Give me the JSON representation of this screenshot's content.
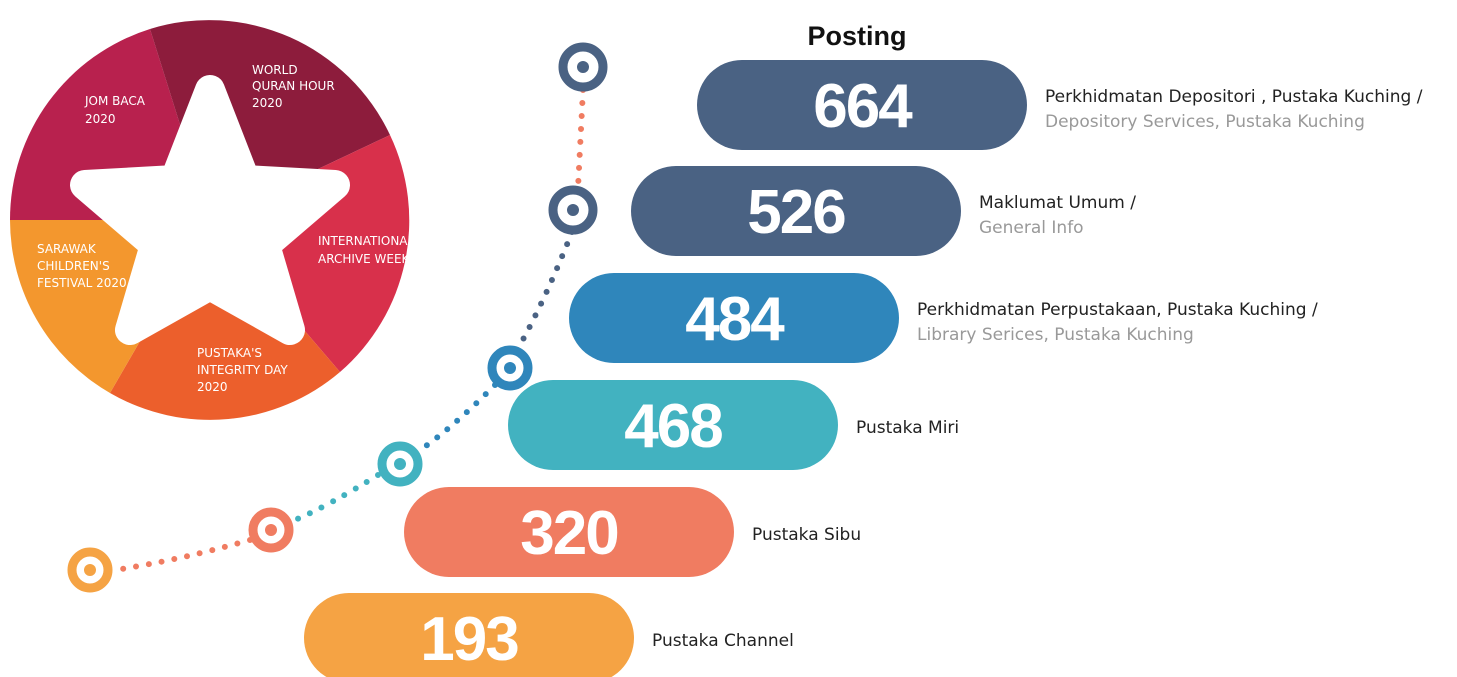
{
  "title": "Posting",
  "items": [
    {
      "value": "664",
      "label": "Perkhidmatan Depositori , Pustaka Kuching /",
      "sublabel": "Depository Services, Pustaka Kuching"
    },
    {
      "value": "526",
      "label": "Maklumat Umum /",
      "sublabel": "General Info"
    },
    {
      "value": "484",
      "label": "Perkhidmatan Perpustakaan, Pustaka Kuching /",
      "sublabel": "Library Serices, Pustaka Kuching"
    },
    {
      "value": "468",
      "label": "Pustaka Miri"
    },
    {
      "value": "320",
      "label": "Pustaka Sibu"
    },
    {
      "value": "193",
      "label": "Pustaka Channel"
    }
  ],
  "segments": [
    {
      "lines": [
        "JOM BACA",
        "2020"
      ]
    },
    {
      "lines": [
        "WORLD",
        "QURAN HOUR",
        "2020"
      ]
    },
    {
      "lines": [
        "INTERNATIONAL",
        "ARCHIVE WEEK"
      ]
    },
    {
      "lines": [
        "PUSTAKA'S",
        "INTEGRITY DAY",
        "2020"
      ]
    },
    {
      "lines": [
        "SARAWAK",
        "CHILDREN'S",
        "FESTIVAL 2020"
      ]
    }
  ]
}
